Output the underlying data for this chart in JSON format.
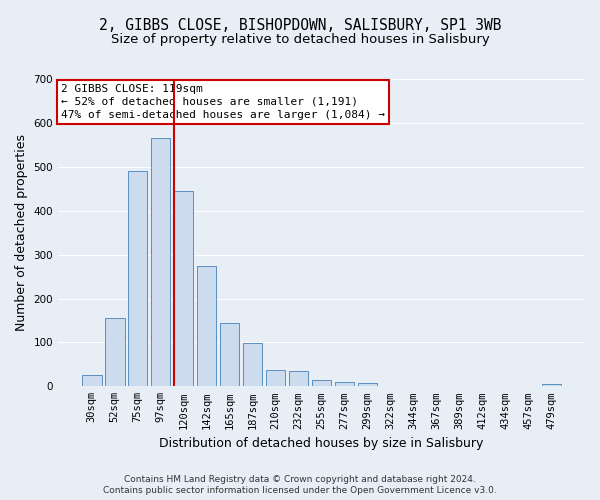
{
  "title": "2, GIBBS CLOSE, BISHOPDOWN, SALISBURY, SP1 3WB",
  "subtitle": "Size of property relative to detached houses in Salisbury",
  "xlabel": "Distribution of detached houses by size in Salisbury",
  "ylabel": "Number of detached properties",
  "bar_labels": [
    "30sqm",
    "52sqm",
    "75sqm",
    "97sqm",
    "120sqm",
    "142sqm",
    "165sqm",
    "187sqm",
    "210sqm",
    "232sqm",
    "255sqm",
    "277sqm",
    "299sqm",
    "322sqm",
    "344sqm",
    "367sqm",
    "389sqm",
    "412sqm",
    "434sqm",
    "457sqm",
    "479sqm"
  ],
  "bar_values": [
    25,
    155,
    490,
    565,
    445,
    275,
    145,
    98,
    37,
    35,
    14,
    10,
    7,
    0,
    0,
    0,
    0,
    0,
    0,
    0,
    5
  ],
  "bar_color": "#ccdcee",
  "bar_edge_color": "#5a8fc0",
  "vline_color": "#cc0000",
  "annotation_line0": "2 GIBBS CLOSE: 119sqm",
  "annotation_line1": "← 52% of detached houses are smaller (1,191)",
  "annotation_line2": "47% of semi-detached houses are larger (1,084) →",
  "annotation_box_color": "#ffffff",
  "annotation_box_edge_color": "#cc0000",
  "ylim": [
    0,
    700
  ],
  "yticks": [
    0,
    100,
    200,
    300,
    400,
    500,
    600,
    700
  ],
  "footnote1": "Contains HM Land Registry data © Crown copyright and database right 2024.",
  "footnote2": "Contains public sector information licensed under the Open Government Licence v3.0.",
  "background_color": "#e8eef6",
  "grid_color": "#ffffff",
  "title_fontsize": 10.5,
  "subtitle_fontsize": 9.5,
  "axis_label_fontsize": 9,
  "tick_fontsize": 7.5,
  "annotation_fontsize": 8,
  "footnote_fontsize": 6.5
}
